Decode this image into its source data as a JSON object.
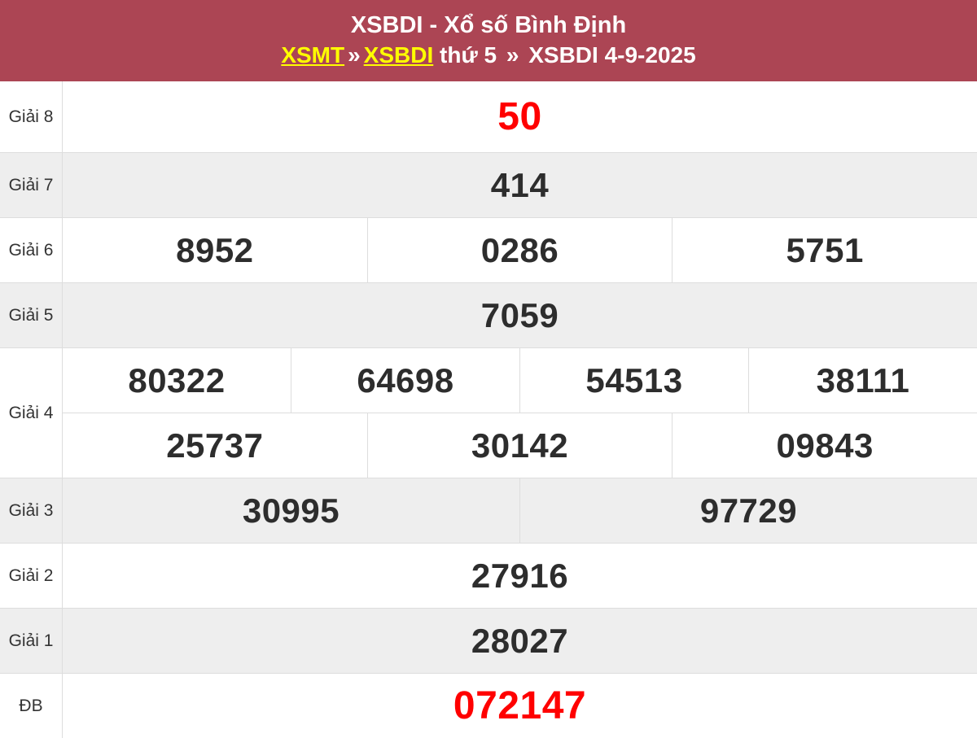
{
  "header": {
    "title": "XSBDI - Xổ số Bình Địnɦ",
    "title_text": "XSBDI - Xổ số Bình Định",
    "breadcrumb": {
      "link_xsmt": "XSMT",
      "sep1": "»",
      "link_xsbdi": "XSBDI",
      "weekday": "thứ 5",
      "sep2": "»",
      "current": "XSBDI 4-9-2025"
    },
    "colors": {
      "background": "#ac4554",
      "text": "#ffffff",
      "link": "#ffff00"
    }
  },
  "results": {
    "colors": {
      "stripe_background": "#eeeeee",
      "number": "#2d2d2d",
      "highlight_number": "#ff0000",
      "border": "#dddddd",
      "label_text": "#333333"
    },
    "rows": [
      {
        "label": "Giải 8",
        "numbers": [
          "50"
        ],
        "highlight": true
      },
      {
        "label": "Giải 7",
        "numbers": [
          "414"
        ]
      },
      {
        "label": "Giải 6",
        "numbers": [
          "8952",
          "0286",
          "5751"
        ]
      },
      {
        "label": "Giải 5",
        "numbers": [
          "7059"
        ]
      },
      {
        "label": "Giải 4",
        "numbers_line1": [
          "80322",
          "64698",
          "54513",
          "38111"
        ],
        "numbers_line2": [
          "25737",
          "30142",
          "09843"
        ]
      },
      {
        "label": "Giải 3",
        "numbers": [
          "30995",
          "97729"
        ]
      },
      {
        "label": "Giải 2",
        "numbers": [
          "27916"
        ]
      },
      {
        "label": "Giải 1",
        "numbers": [
          "28027"
        ]
      },
      {
        "label": "ĐB",
        "numbers": [
          "072147"
        ],
        "highlight": true
      }
    ]
  }
}
